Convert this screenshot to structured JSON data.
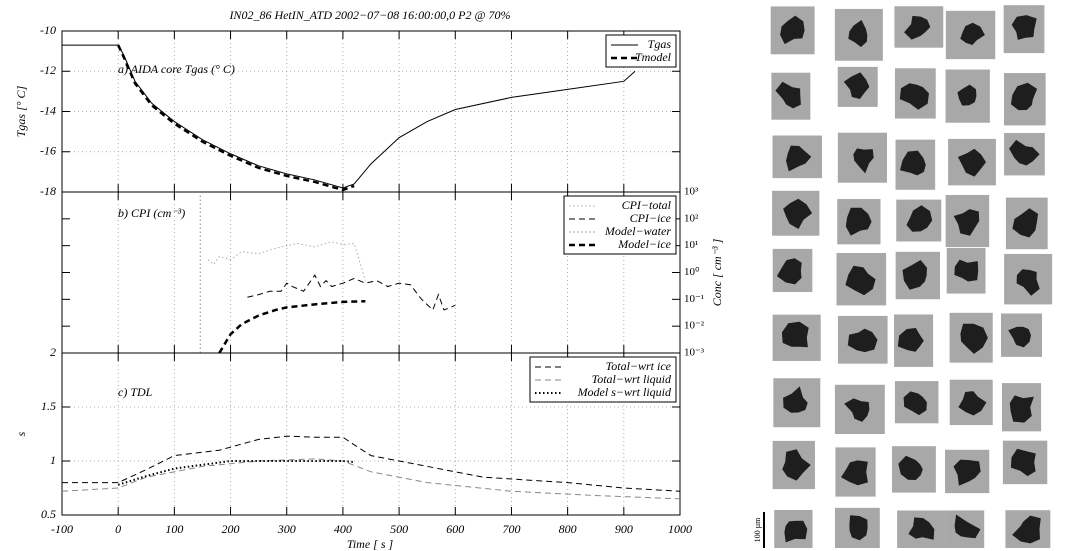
{
  "title": "IN02_86 HetIN_ATD 2002−07−08 16:00:00,0 P2 @ 70%",
  "xlabel": "Time [ s ]",
  "xlim": [
    -100,
    1000
  ],
  "xticks": [
    -100,
    0,
    100,
    200,
    300,
    400,
    500,
    600,
    700,
    800,
    900,
    1000
  ],
  "scale_label": "100 µm",
  "chart_data": [
    {
      "type": "line",
      "annotation": "a) AIDA core Tgas (° C)",
      "ylabel": "Tgas [° C]",
      "ylim": [
        -18,
        -10
      ],
      "yticks": [
        -18,
        -16,
        -14,
        -12,
        -10
      ],
      "grid": true,
      "legend": "top-right",
      "series": [
        {
          "name": "Tgas",
          "color": "#000000",
          "style": "solid",
          "width": 1,
          "x": [
            -100,
            0,
            10,
            30,
            60,
            100,
            150,
            200,
            250,
            300,
            350,
            400,
            420,
            450,
            500,
            550,
            600,
            700,
            800,
            900,
            920
          ],
          "values": [
            -10.7,
            -10.7,
            -11.2,
            -12.5,
            -13.6,
            -14.5,
            -15.4,
            -16.1,
            -16.7,
            -17.1,
            -17.4,
            -17.8,
            -17.6,
            -16.6,
            -15.3,
            -14.5,
            -13.9,
            -13.3,
            -12.9,
            -12.5,
            -12.0
          ]
        },
        {
          "name": "Tmodel",
          "color": "#000000",
          "style": "dashed",
          "width": 2.5,
          "x": [
            0,
            10,
            30,
            60,
            100,
            150,
            200,
            250,
            300,
            350,
            400,
            420
          ],
          "values": [
            -10.7,
            -11.3,
            -12.6,
            -13.7,
            -14.6,
            -15.5,
            -16.2,
            -16.8,
            -17.2,
            -17.5,
            -17.9,
            -17.7
          ]
        }
      ]
    },
    {
      "type": "line",
      "annotation": "b) CPI (cm⁻³)",
      "ylabel": "Conc [ cm⁻³ ]",
      "log": true,
      "ylim": [
        0.001,
        1000
      ],
      "yticks": [
        {
          "value": 0.001,
          "label": "10⁻³"
        },
        {
          "value": 0.01,
          "label": "10⁻²"
        },
        {
          "value": 0.1,
          "label": "10⁻¹"
        },
        {
          "value": 1,
          "label": "10⁰"
        },
        {
          "value": 10,
          "label": "10¹"
        },
        {
          "value": 100,
          "label": "10²"
        },
        {
          "value": 1000,
          "label": "10³"
        }
      ],
      "grid": true,
      "legend": "top-right",
      "series": [
        {
          "name": "CPI−total",
          "color": "#aaaaaa",
          "style": "dotted",
          "width": 1,
          "x": [
            160,
            170,
            180,
            200,
            220,
            250,
            280,
            300,
            320,
            350,
            380,
            400,
            420,
            440
          ],
          "values": [
            3,
            2,
            4,
            3,
            6,
            5,
            8,
            10,
            12,
            9,
            14,
            11,
            12,
            0.5
          ]
        },
        {
          "name": "CPI−ice",
          "color": "#000000",
          "style": "dashed",
          "width": 1,
          "x": [
            230,
            250,
            270,
            290,
            300,
            310,
            330,
            350,
            360,
            370,
            380,
            400,
            420,
            440,
            460,
            480,
            500,
            520,
            540,
            560,
            570,
            580,
            600
          ],
          "values": [
            0.12,
            0.15,
            0.2,
            0.2,
            0.4,
            0.3,
            0.2,
            0.8,
            0.3,
            0.5,
            0.3,
            0.4,
            0.6,
            0.4,
            0.5,
            0.3,
            0.4,
            0.35,
            0.1,
            0.04,
            0.15,
            0.04,
            0.06
          ]
        },
        {
          "name": "Model−water",
          "color": "#888888",
          "style": "dotted",
          "width": 1,
          "x": [
            146,
            146
          ],
          "values": [
            0.001,
            1000
          ]
        },
        {
          "name": "Model−ice",
          "color": "#000000",
          "style": "dashed",
          "width": 2.5,
          "x": [
            180,
            200,
            220,
            250,
            280,
            300,
            350,
            400,
            440
          ],
          "values": [
            0.001,
            0.005,
            0.012,
            0.025,
            0.04,
            0.05,
            0.065,
            0.08,
            0.085
          ]
        }
      ]
    },
    {
      "type": "line",
      "annotation": "c) TDL",
      "ylabel": "s",
      "ylim": [
        0.5,
        2
      ],
      "yticks": [
        0.5,
        1,
        1.5,
        2
      ],
      "grid": true,
      "legend": "top-right",
      "series": [
        {
          "name": "Total−wrt ice",
          "color": "#000000",
          "style": "dashed",
          "width": 1,
          "x": [
            -100,
            0,
            50,
            100,
            180,
            250,
            300,
            350,
            400,
            420,
            450,
            500,
            550,
            650,
            800,
            900,
            1000
          ],
          "values": [
            0.8,
            0.8,
            0.92,
            1.05,
            1.1,
            1.2,
            1.23,
            1.22,
            1.22,
            1.15,
            1.05,
            1.0,
            0.95,
            0.85,
            0.8,
            0.75,
            0.72
          ]
        },
        {
          "name": "Total−wrt liquid",
          "color": "#888888",
          "style": "dashed",
          "width": 1,
          "x": [
            -100,
            0,
            50,
            150,
            250,
            350,
            400,
            450,
            550,
            700,
            850,
            1000
          ],
          "values": [
            0.72,
            0.75,
            0.85,
            0.95,
            1.0,
            1.02,
            1.0,
            0.9,
            0.8,
            0.72,
            0.68,
            0.65
          ]
        },
        {
          "name": "Model s−wrt liquid",
          "color": "#000000",
          "style": "dotted",
          "width": 2,
          "x": [
            0,
            50,
            100,
            200,
            300,
            400,
            420
          ],
          "values": [
            0.78,
            0.86,
            0.93,
            1.0,
            1.0,
            1.0,
            0.99
          ]
        }
      ]
    }
  ]
}
